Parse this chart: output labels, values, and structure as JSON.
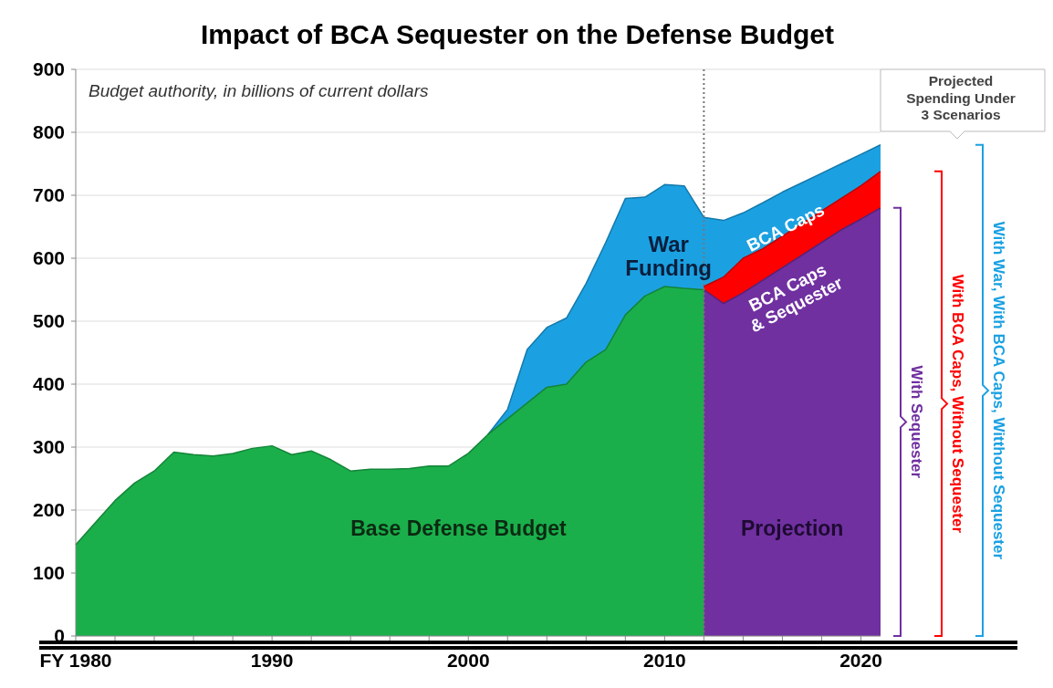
{
  "chart_data": {
    "type": "area",
    "title": "Impact of BCA Sequester on the Defense Budget",
    "subtitle": "Budget authority, in billions of current dollars",
    "series": [
      {
        "name": "War Funding",
        "color": "#1ba1e2",
        "x": [
          2001,
          2002,
          2003,
          2004,
          2005,
          2006,
          2007,
          2008,
          2009,
          2010,
          2011,
          2012,
          2013,
          2014,
          2015,
          2016,
          2017,
          2018,
          2019,
          2020,
          2021
        ],
        "values": [
          320,
          360,
          455,
          490,
          505,
          560,
          625,
          695,
          697,
          717,
          715,
          665,
          660,
          672,
          688,
          705,
          720,
          735,
          750,
          765,
          780
        ]
      },
      {
        "name": "BCA Caps",
        "color": "#ff0000",
        "x": [
          2012,
          2013,
          2014,
          2015,
          2016,
          2017,
          2018,
          2019,
          2020,
          2021
        ],
        "values": [
          555,
          570,
          600,
          615,
          635,
          655,
          675,
          695,
          715,
          738
        ]
      },
      {
        "name": "BCA Caps & Sequester",
        "color": "#7030a0",
        "x": [
          2012,
          2013,
          2014,
          2015,
          2016,
          2017,
          2018,
          2019,
          2020,
          2021
        ],
        "values": [
          550,
          528,
          545,
          565,
          585,
          605,
          625,
          645,
          662,
          680
        ]
      },
      {
        "name": "Base Defense Budget",
        "color": "#1aaf4b",
        "x": [
          1980,
          1981,
          1982,
          1983,
          1984,
          1985,
          1986,
          1987,
          1988,
          1989,
          1990,
          1991,
          1992,
          1993,
          1994,
          1995,
          1996,
          1997,
          1998,
          1999,
          2000,
          2001,
          2002,
          2003,
          2004,
          2005,
          2006,
          2007,
          2008,
          2009,
          2010,
          2011,
          2012
        ],
        "values": [
          145,
          180,
          215,
          243,
          262,
          292,
          288,
          286,
          290,
          298,
          302,
          288,
          294,
          280,
          262,
          265,
          265,
          266,
          270,
          270,
          290,
          320,
          345,
          370,
          395,
          400,
          435,
          455,
          510,
          540,
          555,
          552,
          550
        ]
      }
    ],
    "xlim": [
      1980,
      2021
    ],
    "xticks": [
      {
        "value": 1980,
        "label": "FY 1980"
      },
      {
        "value": 1982,
        "label": null
      },
      {
        "value": 1984,
        "label": null
      },
      {
        "value": 1986,
        "label": null
      },
      {
        "value": 1988,
        "label": null
      },
      1990,
      {
        "value": 1992,
        "label": null
      },
      {
        "value": 1994,
        "label": null
      },
      {
        "value": 1996,
        "label": null
      },
      {
        "value": 1998,
        "label": null
      },
      2000,
      {
        "value": 2002,
        "label": null
      },
      {
        "value": 2004,
        "label": null
      },
      {
        "value": 2006,
        "label": null
      },
      {
        "value": 2008,
        "label": null
      },
      2010,
      {
        "value": 2012,
        "label": null
      },
      {
        "value": 2014,
        "label": null
      },
      {
        "value": 2016,
        "label": null
      },
      {
        "value": 2018,
        "label": null
      },
      2020
    ],
    "ylim": [
      0,
      900
    ],
    "yticks": [
      0,
      100,
      200,
      300,
      400,
      500,
      600,
      700,
      800,
      900
    ],
    "grid": "y",
    "ref_lines": [
      {
        "axis": "x",
        "value": 2012,
        "line_style": "dotted",
        "color": "#777777"
      }
    ],
    "annotations": [
      "Projection",
      "Projected Spending Under 3 Scenarios",
      "With Sequester",
      "With BCA Caps, Without  Sequester",
      "With War, With BCA Caps, Witthout Sequester"
    ]
  }
}
